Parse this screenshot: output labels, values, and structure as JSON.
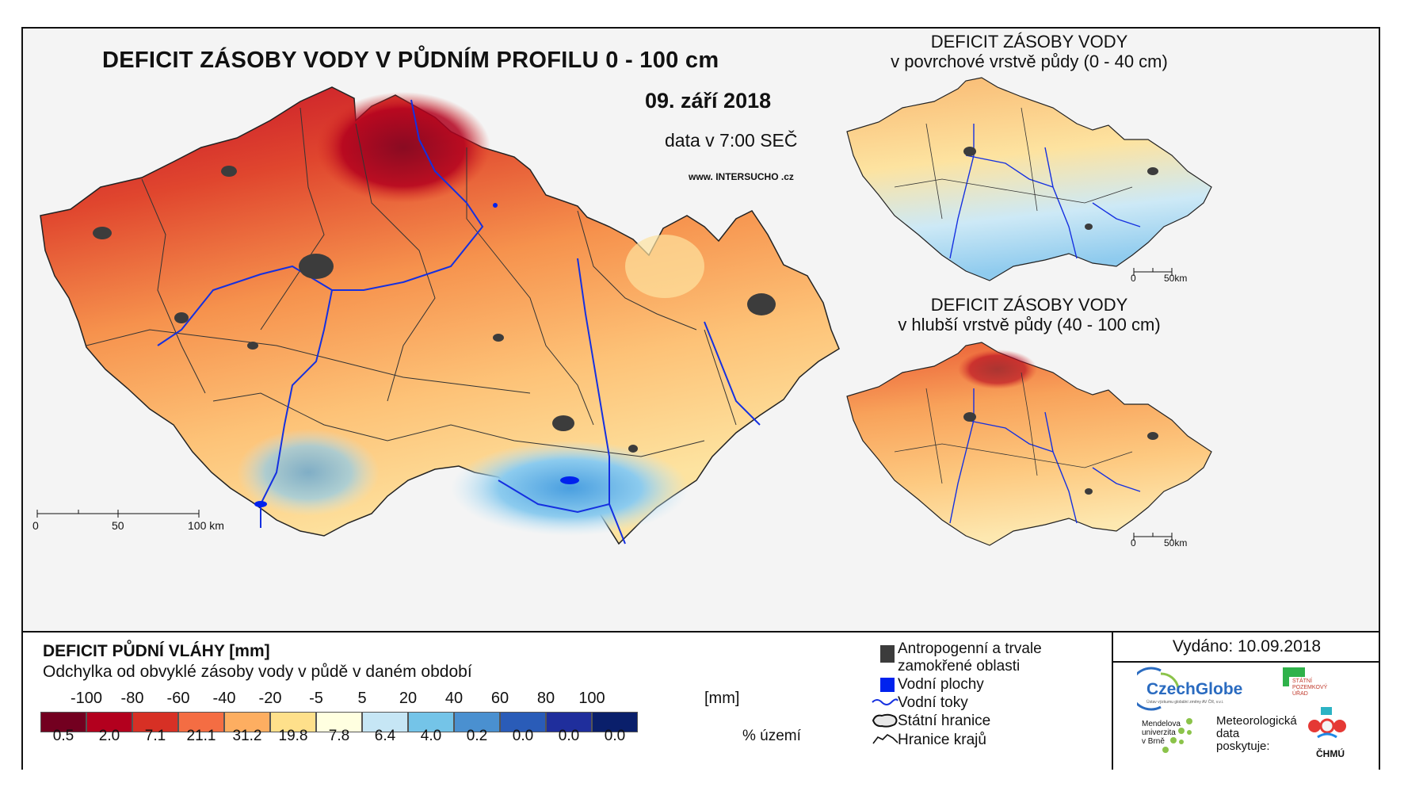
{
  "main_map": {
    "title": "DEFICIT ZÁSOBY VODY V PŮDNÍM PROFILU 0 - 100 cm",
    "date": "09. září 2018",
    "data_time": "data v 7:00 SEČ",
    "website": "www. INTERSUCHO .cz",
    "scale_labels": [
      "0",
      "50",
      "100 km"
    ]
  },
  "inset_top": {
    "title_line1": "DEFICIT ZÁSOBY VODY",
    "title_line2": "v povrchové vrstvě půdy (0 - 40 cm)",
    "scale_labels": [
      "0",
      "50km"
    ]
  },
  "inset_bottom": {
    "title_line1": "DEFICIT ZÁSOBY VODY",
    "title_line2": "v hlubší vrstvě půdy (40 - 100 cm)",
    "scale_labels": [
      "0",
      "50km"
    ]
  },
  "legend": {
    "title": "DEFICIT PŮDNÍ VLÁHY [mm]",
    "subtitle": "Odchylka od obvyklé zásoby vody v půdě v daném období",
    "bin_labels": [
      "-100",
      "-80",
      "-60",
      "-40",
      "-20",
      "-5",
      "5",
      "20",
      "40",
      "60",
      "80",
      "100"
    ],
    "unit": "[mm]",
    "colors": [
      "#730020",
      "#b3001e",
      "#d73025",
      "#f46d43",
      "#fdae61",
      "#fee08b",
      "#ffffe0",
      "#c6e6f5",
      "#74c4e8",
      "#4a90d0",
      "#2a5cb8",
      "#1f2e9c",
      "#0a1f6b"
    ],
    "percentages": [
      "0.5",
      "2.0",
      "7.1",
      "21.1",
      "31.2",
      "19.8",
      "7.8",
      "6.4",
      "4.0",
      "0.2",
      "0.0",
      "0.0",
      "0.0"
    ],
    "pct_unit": "% území"
  },
  "symbols": {
    "anthropogenic_line1": "Antropogenní a trvale",
    "anthropogenic_line2": "zamokřené oblasti",
    "water_bodies": "Vodní plochy",
    "rivers": "Vodní toky",
    "state_border": "Státní hranice",
    "region_border": "Hranice krajů"
  },
  "issued": "Vydáno: 10.09.2018",
  "logos": {
    "czechglobe": "CzechGlobe",
    "czechglobe_sub": "Ústav výzkumu globální změny AV ČR, v.v.i.",
    "spu_line1": "STÁTNÍ",
    "spu_line2": "POZEMKOVÝ",
    "spu_line3": "ÚŘAD",
    "mendel_line1": "Mendelova",
    "mendel_line2": "univerzita",
    "mendel_line3": "v Brně",
    "met_line1": "Meteorologická",
    "met_line2": "data",
    "met_line3": "poskytuje:",
    "chmu": "ČHMÚ"
  }
}
